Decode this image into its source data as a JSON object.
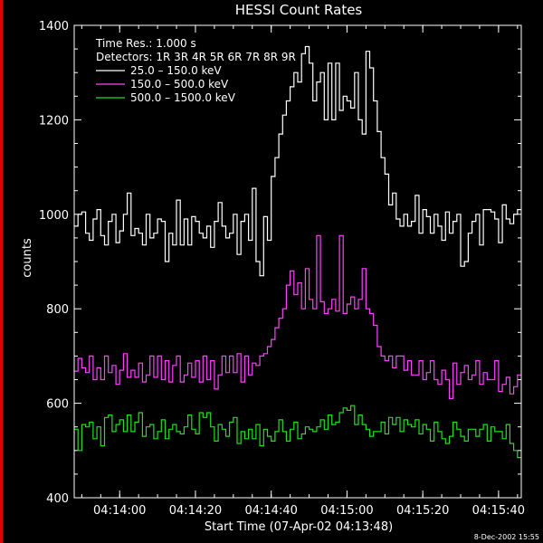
{
  "chart_data": {
    "type": "line",
    "title": "HESSI Count Rates",
    "ylabel": "counts",
    "xlabel": "Start Time (07-Apr-02 04:13:48)",
    "footer_date": "8-Dec-2002 15:55",
    "ylim": [
      400,
      1400
    ],
    "x_range_seconds_after_start": [
      0,
      118
    ],
    "yticks": [
      400,
      600,
      800,
      1000,
      1200,
      1400
    ],
    "xticks": [
      {
        "label": "04:14:00",
        "seconds_after_start": 12
      },
      {
        "label": "04:14:20",
        "seconds_after_start": 32
      },
      {
        "label": "04:14:40",
        "seconds_after_start": 52
      },
      {
        "label": "04:15:00",
        "seconds_after_start": 72
      },
      {
        "label": "04:15:20",
        "seconds_after_start": 92
      },
      {
        "label": "04:15:40",
        "seconds_after_start": 112
      }
    ],
    "annotations": {
      "time_res": "Time Res.: 1.000 s",
      "detectors": "Detectors: 1R 3R 4R 5R 6R 7R 8R 9R"
    },
    "legend_position": "top-left",
    "series": [
      {
        "name": "25.0 – 150.0 keV",
        "color": "#ffffff",
        "values": [
          975,
          1000,
          1005,
          960,
          945,
          990,
          1010,
          955,
          935,
          985,
          1000,
          940,
          965,
          1000,
          1045,
          955,
          970,
          960,
          935,
          1000,
          950,
          960,
          990,
          985,
          900,
          960,
          935,
          1030,
          935,
          990,
          935,
          995,
          985,
          960,
          950,
          975,
          930,
          985,
          1025,
          975,
          950,
          960,
          1000,
          915,
          985,
          1000,
          945,
          1055,
          900,
          870,
          995,
          945,
          1080,
          1120,
          1170,
          1210,
          1240,
          1270,
          1300,
          1280,
          1340,
          1355,
          1320,
          1240,
          1280,
          1300,
          1200,
          1320,
          1200,
          1320,
          1220,
          1250,
          1240,
          1225,
          1300,
          1200,
          1170,
          1345,
          1310,
          1240,
          1175,
          1120,
          1085,
          1020,
          1045,
          990,
          975,
          1000,
          975,
          985,
          1040,
          960,
          1010,
          995,
          960,
          1000,
          975,
          945,
          1005,
          960,
          985,
          1000,
          890,
          900,
          960,
          985,
          1000,
          935,
          1010,
          1010,
          1005,
          990,
          940,
          1020,
          990,
          980,
          1000,
          1010
        ]
      },
      {
        "name": "150.0 – 500.0 keV",
        "color": "#ff40ff",
        "values": [
          668,
          695,
          675,
          665,
          700,
          650,
          675,
          650,
          700,
          665,
          680,
          640,
          670,
          705,
          655,
          670,
          655,
          685,
          645,
          660,
          700,
          655,
          700,
          650,
          690,
          645,
          680,
          700,
          645,
          660,
          685,
          655,
          690,
          645,
          700,
          650,
          690,
          630,
          660,
          700,
          665,
          700,
          665,
          705,
          645,
          700,
          660,
          685,
          680,
          700,
          705,
          720,
          735,
          760,
          780,
          800,
          850,
          880,
          830,
          855,
          800,
          885,
          820,
          800,
          955,
          815,
          790,
          800,
          820,
          795,
          955,
          790,
          810,
          825,
          800,
          820,
          885,
          800,
          790,
          765,
          720,
          700,
          690,
          700,
          675,
          700,
          700,
          670,
          690,
          660,
          660,
          690,
          650,
          665,
          690,
          650,
          640,
          670,
          650,
          610,
          685,
          640,
          665,
          680,
          650,
          660,
          690,
          640,
          665,
          650,
          650,
          690,
          625,
          640,
          655,
          620,
          635,
          660
        ]
      },
      {
        "name": "500.0 – 1500.0 keV",
        "color": "#20e020",
        "values": [
          545,
          500,
          555,
          550,
          560,
          525,
          550,
          510,
          570,
          575,
          540,
          555,
          565,
          540,
          575,
          540,
          560,
          580,
          530,
          550,
          555,
          525,
          540,
          565,
          525,
          545,
          555,
          540,
          535,
          550,
          575,
          545,
          535,
          580,
          570,
          580,
          550,
          520,
          555,
          545,
          530,
          560,
          570,
          515,
          540,
          525,
          545,
          525,
          555,
          510,
          545,
          530,
          520,
          540,
          565,
          540,
          520,
          545,
          560,
          525,
          535,
          550,
          545,
          540,
          550,
          565,
          545,
          575,
          555,
          560,
          580,
          590,
          585,
          595,
          555,
          575,
          555,
          545,
          530,
          540,
          540,
          560,
          535,
          570,
          555,
          570,
          540,
          565,
          555,
          550,
          565,
          535,
          555,
          545,
          520,
          560,
          540,
          525,
          515,
          530,
          560,
          545,
          530,
          520,
          545,
          545,
          530,
          545,
          555,
          520,
          550,
          540,
          540,
          525,
          555,
          515,
          500,
          485
        ]
      }
    ]
  }
}
